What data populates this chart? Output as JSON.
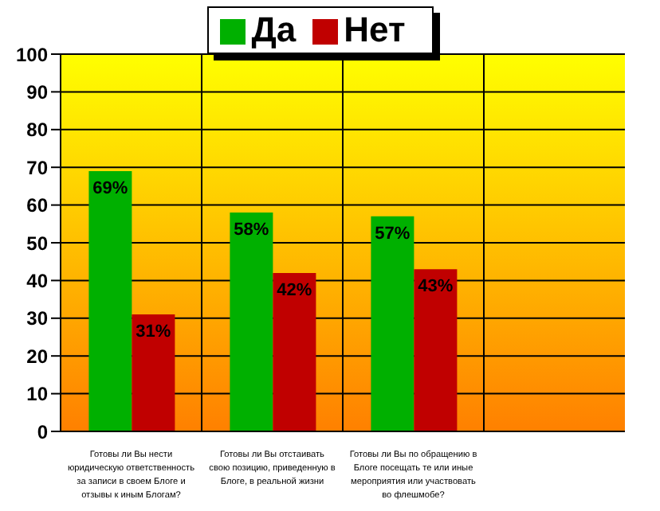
{
  "chart_data": {
    "type": "bar",
    "categories": [
      "Готовы ли Вы нести юридическую ответственность за записи в своем Блоге и отзывы к иным Блогам?",
      "Готовы ли Вы отстаивать свою позицию, приведенную в Блоге, в реальной жизни",
      "Готовы ли Вы по обращению в Блоге посещать те или иные мероприятия или участвовать во флешмобе?",
      null
    ],
    "series": [
      {
        "name": "Да",
        "color": "#00b000",
        "values": [
          69,
          58,
          57,
          null
        ],
        "value_labels": [
          "69%",
          "58%",
          "57%",
          null
        ]
      },
      {
        "name": "Нет",
        "color": "#c00000",
        "values": [
          31,
          42,
          43,
          null
        ],
        "value_labels": [
          "31%",
          "42%",
          "43%",
          null
        ]
      }
    ],
    "ylim": [
      0,
      100
    ],
    "yticks": [
      0,
      10,
      20,
      30,
      40,
      50,
      60,
      70,
      80,
      90,
      100
    ],
    "grid": true,
    "legend": "top"
  }
}
